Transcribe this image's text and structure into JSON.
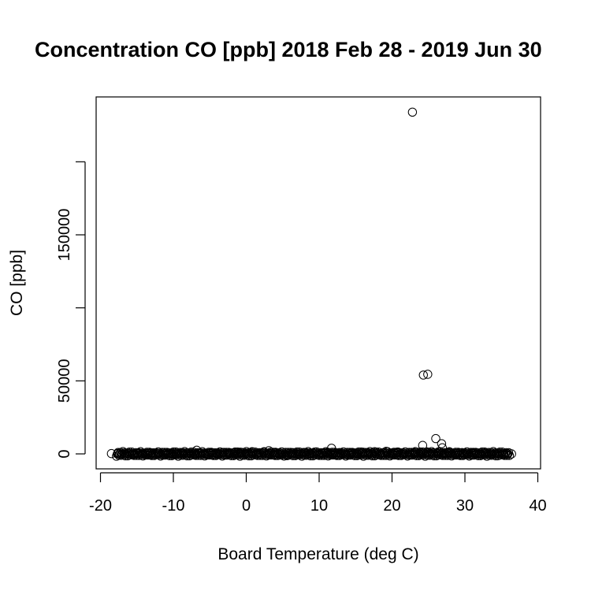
{
  "chart_data": {
    "type": "scatter",
    "title": "Concentration CO [ppb] 2018 Feb 28 - 2019 Jun 30",
    "xlabel": "Board Temperature (deg C)",
    "ylabel": "CO [ppb]",
    "xlim": [
      -20,
      40
    ],
    "ylim": [
      -10000,
      235000
    ],
    "x_ticks": [
      -20,
      -10,
      0,
      10,
      20,
      30,
      40
    ],
    "x_tick_labels": [
      "-20",
      "-10",
      "0",
      "10",
      "20",
      "30",
      "40"
    ],
    "y_ticks": [
      0,
      50000,
      100000,
      150000,
      200000
    ],
    "y_tick_labels": [
      "0",
      "50000",
      "",
      "150000",
      ""
    ],
    "grid": false,
    "legend": "none",
    "marker": "open-circle",
    "points": [
      {
        "x": 22.8,
        "y": 234000
      },
      {
        "x": 24.3,
        "y": 54000
      },
      {
        "x": 24.9,
        "y": 54500
      },
      {
        "x": 26.0,
        "y": 10500
      },
      {
        "x": 26.8,
        "y": 7000
      },
      {
        "x": 24.2,
        "y": 5800
      },
      {
        "x": 26.9,
        "y": 4200
      },
      {
        "x": 11.7,
        "y": 3900
      },
      {
        "x": -6.8,
        "y": 2500
      },
      {
        "x": 3.1,
        "y": 2200
      },
      {
        "x": -18.5,
        "y": 200
      },
      {
        "x": -17.6,
        "y": 300
      },
      {
        "x": -17.0,
        "y": 100
      },
      {
        "x": -16.3,
        "y": 200
      },
      {
        "x": -15.6,
        "y": 0
      },
      {
        "x": -14.9,
        "y": 300
      },
      {
        "x": -14.2,
        "y": 100
      },
      {
        "x": -13.5,
        "y": 200
      },
      {
        "x": -12.8,
        "y": 0
      },
      {
        "x": -12.0,
        "y": 300
      },
      {
        "x": -11.2,
        "y": 100
      },
      {
        "x": -10.4,
        "y": 400
      },
      {
        "x": -9.6,
        "y": 0
      },
      {
        "x": -8.8,
        "y": 300
      },
      {
        "x": -8.0,
        "y": 600
      },
      {
        "x": -7.2,
        "y": 100
      },
      {
        "x": -6.4,
        "y": 500
      },
      {
        "x": -5.6,
        "y": 0
      },
      {
        "x": -4.8,
        "y": 800
      },
      {
        "x": -4.0,
        "y": 300
      },
      {
        "x": -3.2,
        "y": 1000
      },
      {
        "x": -2.4,
        "y": 200
      },
      {
        "x": -1.6,
        "y": 700
      },
      {
        "x": -0.8,
        "y": 1200
      },
      {
        "x": 0.0,
        "y": 400
      },
      {
        "x": 0.8,
        "y": 1500
      },
      {
        "x": 1.6,
        "y": 600
      },
      {
        "x": 2.4,
        "y": 1300
      },
      {
        "x": 3.2,
        "y": 300
      },
      {
        "x": 4.0,
        "y": 1100
      },
      {
        "x": 4.8,
        "y": -800
      },
      {
        "x": 5.6,
        "y": -1200
      },
      {
        "x": 6.4,
        "y": 900
      },
      {
        "x": 7.2,
        "y": -400
      },
      {
        "x": 8.0,
        "y": 1000
      },
      {
        "x": 8.8,
        "y": 200
      },
      {
        "x": 9.6,
        "y": 1400
      },
      {
        "x": 10.4,
        "y": 400
      },
      {
        "x": 11.2,
        "y": 1100
      },
      {
        "x": 12.0,
        "y": 0
      },
      {
        "x": 12.8,
        "y": 900
      },
      {
        "x": 13.6,
        "y": -300
      },
      {
        "x": 14.4,
        "y": 800
      },
      {
        "x": 15.2,
        "y": 300
      },
      {
        "x": 16.0,
        "y": 1200
      },
      {
        "x": 16.8,
        "y": 500
      },
      {
        "x": 17.6,
        "y": 1500
      },
      {
        "x": 18.4,
        "y": 200
      },
      {
        "x": 19.2,
        "y": 1800
      },
      {
        "x": 20.0,
        "y": 700
      },
      {
        "x": 20.8,
        "y": 1300
      },
      {
        "x": 21.6,
        "y": 400
      },
      {
        "x": 22.4,
        "y": 1000
      },
      {
        "x": 23.2,
        "y": 1600
      },
      {
        "x": 24.0,
        "y": 600
      },
      {
        "x": 24.8,
        "y": 1400
      },
      {
        "x": 25.6,
        "y": 800
      },
      {
        "x": 26.4,
        "y": 1200
      },
      {
        "x": 27.2,
        "y": 500
      },
      {
        "x": 28.0,
        "y": 1100
      },
      {
        "x": 28.8,
        "y": 300
      },
      {
        "x": 29.6,
        "y": 900
      },
      {
        "x": 30.4,
        "y": 200
      },
      {
        "x": 31.2,
        "y": 700
      },
      {
        "x": 32.0,
        "y": 100
      },
      {
        "x": 32.8,
        "y": 600
      },
      {
        "x": 33.6,
        "y": 0
      },
      {
        "x": 34.4,
        "y": 400
      },
      {
        "x": 35.2,
        "y": 100
      },
      {
        "x": 35.8,
        "y": 300
      },
      {
        "x": 36.4,
        "y": 0
      }
    ]
  }
}
